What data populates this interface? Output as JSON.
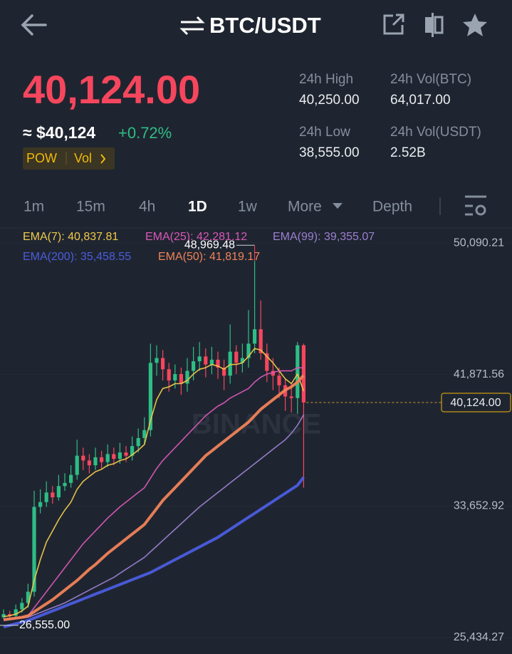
{
  "header": {
    "title": "BTC/USDT"
  },
  "ticker": {
    "price": "40,124.00",
    "approx": "≈ $40,124",
    "change": "+0.72%",
    "tags": [
      "POW",
      "Vol"
    ],
    "stats": [
      {
        "label": "24h High",
        "value": "40,250.00"
      },
      {
        "label": "24h Vol(BTC)",
        "value": "64,017.00"
      },
      {
        "label": "24h Low",
        "value": "38,555.00"
      },
      {
        "label": "24h Vol(USDT)",
        "value": "2.52B"
      }
    ]
  },
  "tabs": {
    "items": [
      "1m",
      "15m",
      "4h",
      "1D",
      "1w",
      "More",
      "Depth"
    ],
    "active_index": 3
  },
  "chart_data": {
    "type": "candlestick",
    "watermark": "BINANCE",
    "up_color": "#2ebd85",
    "down_color": "#f6465d",
    "ylim": [
      24987,
      51028
    ],
    "yticks": [
      {
        "value": 50090.21,
        "label": "50,090.21"
      },
      {
        "value": 41871.56,
        "label": "41,871.56"
      },
      {
        "value": 33652.92,
        "label": "33,652.92"
      },
      {
        "value": 25434.27,
        "label": "25,434.27"
      }
    ],
    "grid": true,
    "max_label": "48,969.48",
    "min_label": "26,555.00",
    "last_price": {
      "value": 40124,
      "label": "40,124.00"
    },
    "open": [
      26700,
      26900,
      26800,
      27200,
      27600,
      28300,
      33600,
      33900,
      34500,
      34200,
      34900,
      35100,
      35600,
      36800,
      36500,
      36200,
      36700,
      36400,
      36900,
      36600,
      37000,
      36800,
      37400,
      37900,
      38400,
      42600,
      42900,
      42200,
      41500,
      41900,
      41300,
      42100,
      42700,
      43000,
      42500,
      42800,
      42300,
      41800,
      43300,
      42600,
      42900,
      43800,
      44700,
      43200,
      42100,
      41800,
      41200,
      40500,
      40400,
      43700
    ],
    "high": [
      27200,
      27100,
      27500,
      27900,
      28800,
      34600,
      34700,
      35200,
      34900,
      35600,
      35700,
      36200,
      37800,
      37300,
      36900,
      37300,
      37100,
      37500,
      37300,
      37600,
      37400,
      38000,
      38500,
      39200,
      43800,
      43700,
      43400,
      42600,
      42500,
      42300,
      42900,
      43600,
      43900,
      43500,
      43600,
      43300,
      42800,
      45000,
      43700,
      43800,
      45900,
      48969.48,
      46500,
      43800,
      42900,
      42300,
      41600,
      41300,
      43900,
      43800
    ],
    "low": [
      26600,
      26555,
      26700,
      27000,
      27300,
      28000,
      33200,
      33600,
      33800,
      34000,
      34600,
      34800,
      35300,
      35900,
      35700,
      35900,
      36000,
      36100,
      36200,
      36300,
      36400,
      36500,
      37000,
      37500,
      38000,
      41800,
      41500,
      40800,
      41000,
      40600,
      40800,
      41500,
      42100,
      41700,
      41900,
      41600,
      40900,
      41300,
      41900,
      42000,
      42300,
      43200,
      42800,
      41400,
      40900,
      40400,
      39600,
      39500,
      39400,
      34800
    ],
    "close": [
      26900,
      26800,
      27200,
      27600,
      28300,
      33600,
      33900,
      34500,
      34200,
      34900,
      35100,
      35600,
      36800,
      36500,
      36200,
      36700,
      36400,
      36900,
      36600,
      37000,
      36800,
      37400,
      37900,
      38400,
      42600,
      42900,
      42200,
      41500,
      41900,
      41300,
      42100,
      42700,
      43000,
      42500,
      42800,
      42300,
      41800,
      43300,
      42600,
      42900,
      43800,
      44700,
      43200,
      42100,
      41800,
      41200,
      40500,
      40400,
      43700,
      40124
    ],
    "series": [
      {
        "name": "EMA(7)",
        "legend": "EMA(7): 40,837.81",
        "color": "#f0c94a",
        "width": 1.6,
        "values": [
          26750,
          26800,
          26900,
          27100,
          27400,
          29000,
          30300,
          31400,
          32100,
          32800,
          33400,
          33900,
          34700,
          35200,
          35500,
          35800,
          35950,
          36200,
          36300,
          36500,
          36600,
          36850,
          37150,
          37500,
          39000,
          40300,
          41000,
          41100,
          41300,
          41300,
          41500,
          41900,
          42200,
          42300,
          42500,
          42400,
          42200,
          42500,
          42500,
          42600,
          43000,
          43500,
          43400,
          43000,
          42600,
          42100,
          41600,
          41300,
          41900,
          40837.81
        ]
      },
      {
        "name": "EMA(25)",
        "legend": "EMA(25): 42,281.12",
        "color": "#d957b8",
        "width": 1.6,
        "values": [
          26600,
          26620,
          26650,
          26700,
          26800,
          27300,
          27800,
          28300,
          28800,
          29300,
          29800,
          30300,
          30800,
          31300,
          31700,
          32100,
          32500,
          32900,
          33250,
          33600,
          33900,
          34200,
          34500,
          34800,
          35400,
          36000,
          36500,
          36900,
          37300,
          37700,
          38100,
          38500,
          38900,
          39300,
          39600,
          39900,
          40100,
          40400,
          40600,
          40800,
          41000,
          41400,
          41700,
          41900,
          42000,
          42100,
          42100,
          42100,
          42300,
          42281.12
        ]
      },
      {
        "name": "EMA(99)",
        "legend": "EMA(99): 39,355.07",
        "color": "#9b7fd1",
        "width": 1.6,
        "values": [
          26500,
          26550,
          26600,
          26650,
          26700,
          26850,
          27000,
          27150,
          27300,
          27450,
          27600,
          27800,
          28000,
          28200,
          28400,
          28600,
          28800,
          29000,
          29200,
          29450,
          29700,
          29950,
          30200,
          30450,
          30800,
          31150,
          31500,
          31850,
          32200,
          32550,
          32900,
          33250,
          33600,
          33900,
          34200,
          34500,
          34800,
          35100,
          35400,
          35700,
          36000,
          36300,
          36600,
          36900,
          37200,
          37500,
          37800,
          38200,
          38700,
          39355.07
        ]
      },
      {
        "name": "EMA(200)",
        "legend": "EMA(200): 35,458.55",
        "color": "#4b5ce0",
        "width": 4,
        "values": [
          26100,
          26200,
          26300,
          26400,
          26500,
          26650,
          26800,
          26950,
          27100,
          27250,
          27400,
          27550,
          27700,
          27850,
          28000,
          28150,
          28300,
          28450,
          28600,
          28750,
          28900,
          29050,
          29200,
          29350,
          29500,
          29700,
          29900,
          30100,
          30300,
          30500,
          30700,
          30900,
          31100,
          31300,
          31500,
          31700,
          31950,
          32200,
          32450,
          32700,
          32950,
          33200,
          33450,
          33700,
          33950,
          34200,
          34450,
          34700,
          34950,
          35458.55
        ]
      },
      {
        "name": "EMA(50)",
        "legend": "EMA(50): 41,819.17",
        "color": "#f0825a",
        "width": 4,
        "values": [
          26550,
          26600,
          26650,
          26700,
          26800,
          27050,
          27300,
          27550,
          27800,
          28100,
          28400,
          28700,
          29000,
          29350,
          29700,
          30000,
          30350,
          30700,
          31000,
          31300,
          31600,
          31900,
          32200,
          32500,
          33000,
          33500,
          34000,
          34400,
          34800,
          35200,
          35600,
          36000,
          36400,
          36800,
          37100,
          37400,
          37700,
          38000,
          38300,
          38600,
          38900,
          39300,
          39700,
          40000,
          40300,
          40600,
          40900,
          41100,
          41400,
          41819.17
        ]
      }
    ]
  }
}
